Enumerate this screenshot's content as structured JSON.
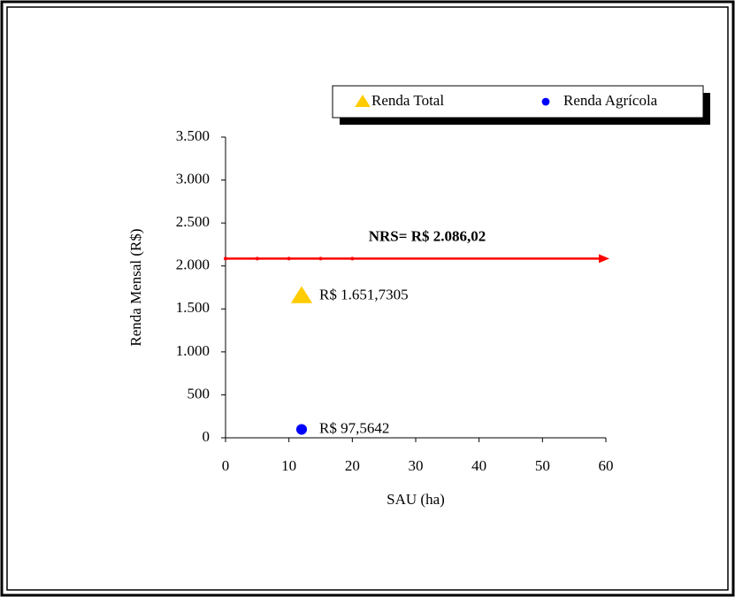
{
  "chart_data": {
    "type": "scatter",
    "x_label": "SAU (ha)",
    "y_label": "Renda Mensal (R$)",
    "xlim": [
      0,
      60
    ],
    "xticks": [
      0,
      10,
      20,
      30,
      40,
      50,
      60
    ],
    "ylim": [
      0,
      3500
    ],
    "yticks": [
      0,
      500,
      {
        "value": 1000,
        "label": "1.000"
      },
      {
        "value": 1500,
        "label": "1.500"
      },
      {
        "value": 2000,
        "label": "2.000"
      },
      {
        "value": 2500,
        "label": "2.500"
      },
      {
        "value": 3000,
        "label": "3.000"
      },
      {
        "value": 3500,
        "label": "3.500"
      }
    ],
    "series": [
      {
        "name": "Renda Total",
        "color": "#ffcc00",
        "marker": "triangle",
        "x": [
          12
        ],
        "values": [
          1651.7305
        ],
        "value_labels": [
          "R$ 1.651,7305"
        ]
      },
      {
        "name": "Renda Agrícola",
        "color": "#0000ff",
        "marker": "circle",
        "x": [
          12
        ],
        "values": [
          97.5642
        ],
        "value_labels": [
          "R$ 97,5642"
        ]
      }
    ],
    "nrs_line": {
      "y": 2086.02,
      "x": [
        0,
        5,
        10,
        15,
        20
      ],
      "color": "#ff0000",
      "label": "NRS= R$ 2.086,02"
    },
    "legend": "top-right"
  }
}
